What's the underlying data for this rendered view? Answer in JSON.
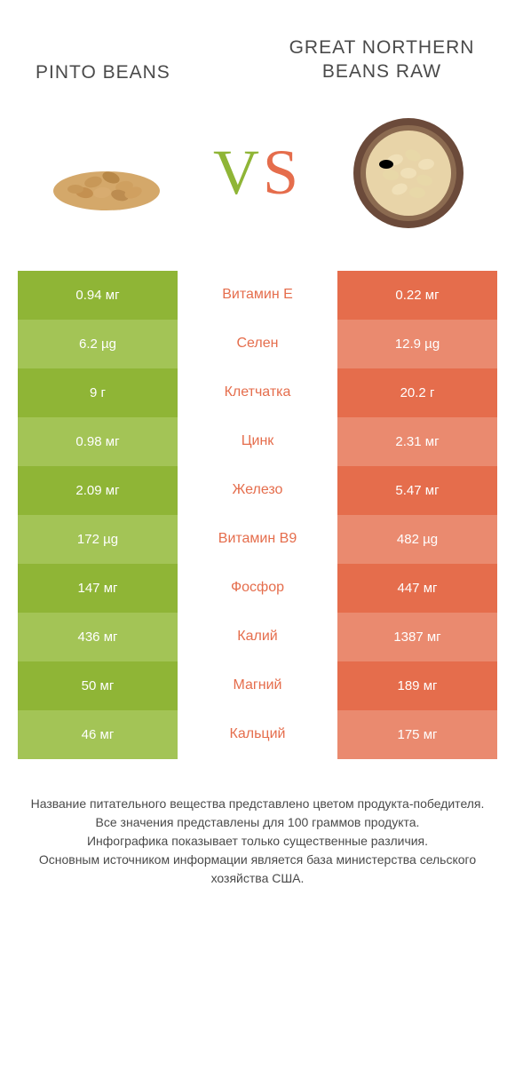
{
  "header": {
    "left_title": "PINTO BEANS",
    "right_title": "GREAT NORTHERN BEANS RAW",
    "vs_v": "V",
    "vs_s": "S"
  },
  "colors": {
    "green_a": "#8fb536",
    "green_b": "#a3c456",
    "orange_a": "#e56d4c",
    "orange_b": "#ea8a6f",
    "label_color": "#e56d4c",
    "text_gray": "#4a4a4a"
  },
  "rows": [
    {
      "left": "0.94 мг",
      "label": "Витамин E",
      "right": "0.22 мг"
    },
    {
      "left": "6.2 µg",
      "label": "Селен",
      "right": "12.9 µg"
    },
    {
      "left": "9 г",
      "label": "Клетчатка",
      "right": "20.2 г"
    },
    {
      "left": "0.98 мг",
      "label": "Цинк",
      "right": "2.31 мг"
    },
    {
      "left": "2.09 мг",
      "label": "Железо",
      "right": "5.47 мг"
    },
    {
      "left": "172 µg",
      "label": "Витамин B9",
      "right": "482 µg"
    },
    {
      "left": "147 мг",
      "label": "Фосфор",
      "right": "447 мг"
    },
    {
      "left": "436 мг",
      "label": "Калий",
      "right": "1387 мг"
    },
    {
      "left": "50 мг",
      "label": "Магний",
      "right": "189 мг"
    },
    {
      "left": "46 мг",
      "label": "Кальций",
      "right": "175 мг"
    }
  ],
  "footer": {
    "line1": "Название питательного вещества представлено цветом продукта-победителя.",
    "line2": "Все значения представлены для 100 граммов продукта.",
    "line3": "Инфографика показывает только существенные различия.",
    "line4": "Основным источником информации является база министерства сельского хозяйства США."
  }
}
